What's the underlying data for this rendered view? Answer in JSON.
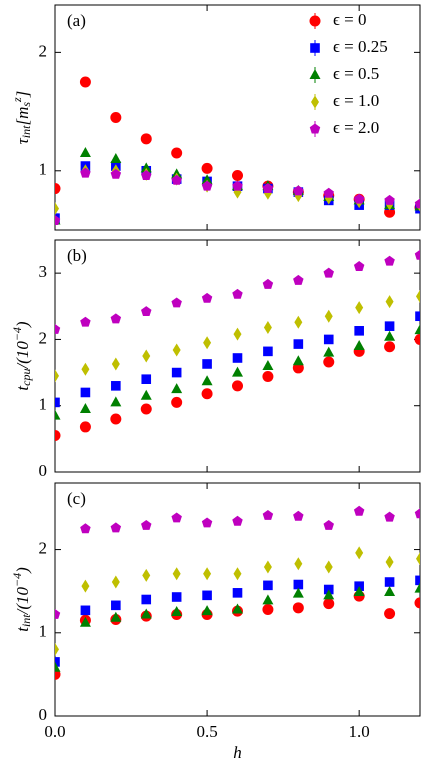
{
  "chart_data": [
    {
      "type": "scatter",
      "label": "(a)",
      "ylabel": [
        {
          "text": "τ"
        },
        {
          "text": "int",
          "shift": "sub"
        },
        {
          "text": "[m"
        },
        {
          "text": "s",
          "shift": "sub"
        },
        {
          "text": "z",
          "shift": "sup"
        },
        {
          "text": "]"
        }
      ],
      "x": [
        0,
        0.1,
        0.2,
        0.3,
        0.4,
        0.5,
        0.6,
        0.7,
        0.8,
        0.9,
        1.0,
        1.1,
        1.2
      ],
      "xlim": [
        0,
        1.2
      ],
      "xticks": [
        0,
        0.5,
        1
      ],
      "ylim": [
        0.5,
        2.4
      ],
      "yticks": [
        1,
        2
      ],
      "legend": "upper right",
      "series": [
        {
          "name": "ϵ = 0",
          "color": "#ff0000",
          "marker": "circle",
          "values": [
            0.85,
            1.75,
            1.45,
            1.27,
            1.15,
            1.02,
            0.96,
            0.87,
            0.82,
            0.79,
            0.76,
            0.65,
            0.69
          ]
        },
        {
          "name": "ϵ = 0.25",
          "color": "#0000ff",
          "marker": "square",
          "values": [
            0.6,
            1.04,
            1.04,
            1.0,
            0.93,
            0.91,
            0.87,
            0.85,
            0.82,
            0.75,
            0.71,
            0.71,
            0.68
          ]
        },
        {
          "name": "ϵ = 0.5",
          "color": "#008000",
          "marker": "triangle",
          "values": [
            0.58,
            1.15,
            1.1,
            1.02,
            0.97,
            0.92,
            0.87,
            0.87,
            0.83,
            0.78,
            0.75,
            0.71,
            0.7
          ]
        },
        {
          "name": "ϵ = 1.0",
          "color": "#bfbf00",
          "marker": "diamond",
          "values": [
            0.68,
            1.0,
            1.0,
            0.97,
            0.93,
            0.87,
            0.82,
            0.81,
            0.79,
            0.77,
            0.74,
            0.72,
            0.71
          ]
        },
        {
          "name": "ϵ = 2.0",
          "color": "#bf00bf",
          "marker": "pentagon",
          "values": [
            0.58,
            0.98,
            0.97,
            0.96,
            0.92,
            0.87,
            0.87,
            0.85,
            0.83,
            0.81,
            0.76,
            0.75,
            0.72
          ]
        }
      ]
    },
    {
      "type": "scatter",
      "label": "(b)",
      "ylabel": [
        {
          "text": "t"
        },
        {
          "text": "cpu",
          "shift": "sub"
        },
        {
          "text": "/(10"
        },
        {
          "text": "−4",
          "shift": "sup"
        },
        {
          "text": ")"
        }
      ],
      "x": [
        0,
        0.1,
        0.2,
        0.3,
        0.4,
        0.5,
        0.6,
        0.7,
        0.8,
        0.9,
        1.0,
        1.1,
        1.2
      ],
      "xlim": [
        0,
        1.2
      ],
      "xticks": [
        0,
        0.5,
        1
      ],
      "ylim": [
        0,
        3.5
      ],
      "yticks": [
        0,
        1,
        2,
        3
      ],
      "series": [
        {
          "color": "#ff0000",
          "marker": "circle",
          "values": [
            0.55,
            0.68,
            0.8,
            0.95,
            1.05,
            1.18,
            1.3,
            1.44,
            1.57,
            1.66,
            1.82,
            1.89,
            2.0
          ]
        },
        {
          "color": "#0000ff",
          "marker": "square",
          "values": [
            1.05,
            1.2,
            1.3,
            1.4,
            1.5,
            1.63,
            1.72,
            1.82,
            1.93,
            2.0,
            2.13,
            2.2,
            2.35
          ]
        },
        {
          "color": "#008000",
          "marker": "triangle",
          "values": [
            0.85,
            0.95,
            1.05,
            1.15,
            1.25,
            1.37,
            1.5,
            1.6,
            1.67,
            1.8,
            1.9,
            2.04,
            2.14
          ]
        },
        {
          "color": "#bfbf00",
          "marker": "diamond",
          "values": [
            1.45,
            1.55,
            1.63,
            1.75,
            1.84,
            1.95,
            2.08,
            2.18,
            2.26,
            2.35,
            2.48,
            2.57,
            2.65
          ]
        },
        {
          "color": "#bf00bf",
          "marker": "pentagon",
          "values": [
            2.15,
            2.26,
            2.31,
            2.42,
            2.55,
            2.62,
            2.68,
            2.83,
            2.89,
            3.0,
            3.1,
            3.18,
            3.27
          ]
        }
      ]
    },
    {
      "type": "scatter",
      "label": "(c)",
      "ylabel": [
        {
          "text": "t"
        },
        {
          "text": "int",
          "shift": "sub"
        },
        {
          "text": "/(10"
        },
        {
          "text": "−4",
          "shift": "sup"
        },
        {
          "text": ")"
        }
      ],
      "xlabel": "h",
      "x": [
        0,
        0.1,
        0.2,
        0.3,
        0.4,
        0.5,
        0.6,
        0.7,
        0.8,
        0.9,
        1.0,
        1.1,
        1.2
      ],
      "xlim": [
        0,
        1.2
      ],
      "xticks": [
        {
          "value": 0,
          "label": "0.0"
        },
        0.5,
        {
          "value": 1,
          "label": "1.0"
        }
      ],
      "ylim": [
        0,
        2.8
      ],
      "yticks": [
        0,
        1,
        2
      ],
      "series": [
        {
          "color": "#ff0000",
          "marker": "circle",
          "values": [
            0.5,
            1.15,
            1.16,
            1.2,
            1.22,
            1.22,
            1.26,
            1.28,
            1.3,
            1.35,
            1.44,
            1.23,
            1.36
          ]
        },
        {
          "color": "#0000ff",
          "marker": "square",
          "values": [
            0.65,
            1.27,
            1.33,
            1.4,
            1.43,
            1.45,
            1.48,
            1.57,
            1.58,
            1.52,
            1.56,
            1.61,
            1.63
          ]
        },
        {
          "color": "#008000",
          "marker": "triangle",
          "values": [
            0.58,
            1.12,
            1.18,
            1.22,
            1.25,
            1.26,
            1.28,
            1.39,
            1.47,
            1.45,
            1.49,
            1.49,
            1.53
          ]
        },
        {
          "color": "#bfbf00",
          "marker": "diamond",
          "values": [
            0.8,
            1.56,
            1.61,
            1.69,
            1.71,
            1.71,
            1.71,
            1.79,
            1.83,
            1.79,
            1.96,
            1.85,
            1.89
          ]
        },
        {
          "color": "#bf00bf",
          "marker": "pentagon",
          "values": [
            1.22,
            2.25,
            2.26,
            2.29,
            2.38,
            2.32,
            2.34,
            2.41,
            2.4,
            2.29,
            2.46,
            2.39,
            2.43
          ]
        }
      ]
    }
  ]
}
